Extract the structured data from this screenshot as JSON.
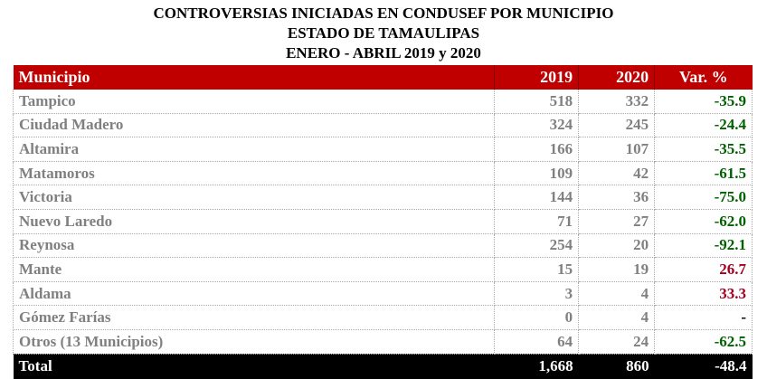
{
  "title": {
    "line1": "CONTROVERSIAS INICIADAS EN CONDUSEF POR MUNICIPIO",
    "line2": "ESTADO DE TAMAULIPAS",
    "line3": "ENERO - ABRIL 2019 y 2020"
  },
  "headers": [
    "Municipio",
    "2019",
    "2020",
    "Var. %"
  ],
  "rows": [
    [
      "Tampico",
      "518",
      "332",
      "-35.9",
      "neg"
    ],
    [
      "Ciudad Madero",
      "324",
      "245",
      "-24.4",
      "neg"
    ],
    [
      "Altamira",
      "166",
      "107",
      "-35.5",
      "neg"
    ],
    [
      "Matamoros",
      "109",
      "42",
      "-61.5",
      "neg"
    ],
    [
      "Victoria",
      "144",
      "36",
      "-75.0",
      "neg"
    ],
    [
      "Nuevo Laredo",
      "71",
      "27",
      "-62.0",
      "neg"
    ],
    [
      "Reynosa",
      "254",
      "20",
      "-92.1",
      "neg"
    ],
    [
      "Mante",
      "15",
      "19",
      "26.7",
      "pos"
    ],
    [
      "Aldama",
      "3",
      "4",
      "33.3",
      "pos"
    ],
    [
      "Gómez Farías",
      "0",
      "4",
      "-",
      "nil"
    ],
    [
      "Otros (13 Municipios)",
      "64",
      "24",
      "-62.5",
      "neg"
    ]
  ],
  "total": [
    "Total",
    "1,668",
    "860",
    "-48.4"
  ],
  "colors": {
    "header": "#c00000",
    "negative": "#006100",
    "positive": "#a50021",
    "text": "#808080"
  }
}
